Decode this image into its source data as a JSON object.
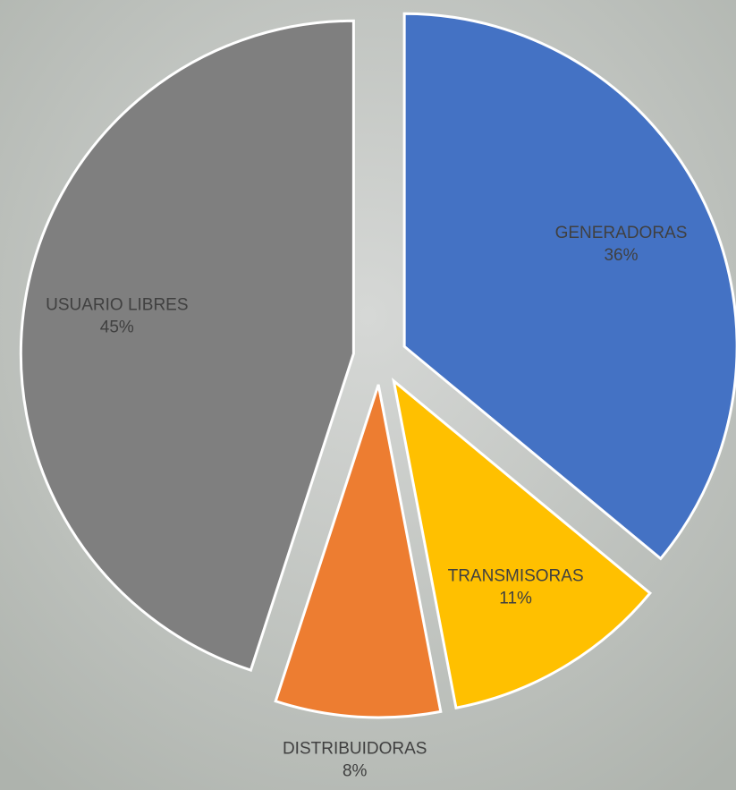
{
  "chart_data": {
    "type": "pie",
    "categories": [
      "GENERADORAS",
      "TRANSMISORAS",
      "DISTRIBUIDORAS",
      "USUARIO LIBRES"
    ],
    "values": [
      36,
      11,
      8,
      45
    ],
    "value_labels": [
      "36%",
      "11%",
      "8%",
      "45%"
    ],
    "colors": [
      "#4472c4",
      "#ffc000",
      "#ed7d31",
      "#7f7f7f"
    ]
  }
}
